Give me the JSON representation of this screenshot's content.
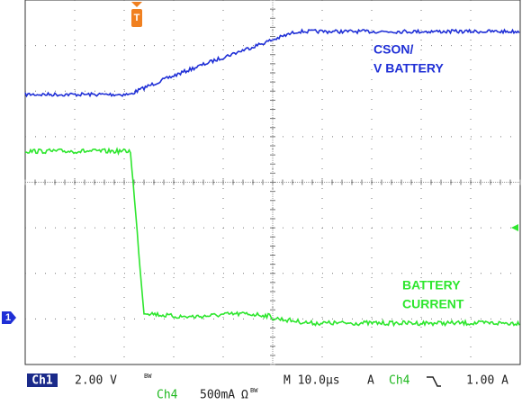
{
  "annotations": {
    "trace1": [
      "CSON/",
      "V BATTERY"
    ],
    "trace2": [
      "BATTERY",
      "CURRENT"
    ]
  },
  "trigger_marker": "T",
  "channel_marker": "1",
  "status": {
    "ch1": "Ch1",
    "ch1_scale": "2.00 V",
    "ch1_bw": "BW",
    "timebase": "M 10.0µs",
    "trigger_mode": "A",
    "trigger_source": "Ch4",
    "trigger_level": "1.00 A",
    "ch4": "Ch4",
    "ch4_scale": "500mA",
    "ch4_coupling": "Ω",
    "ch4_bw": "BW"
  }
}
